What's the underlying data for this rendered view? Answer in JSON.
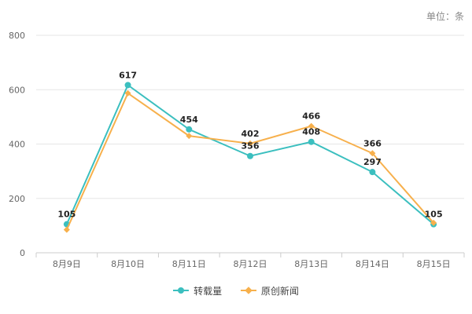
{
  "unit_label": "单位：条",
  "colors": {
    "series_reprint": "#3bbfbf",
    "series_original": "#f7b04c",
    "grid": "#e6e6e6",
    "axis": "#cccccc",
    "tick_text": "#666666",
    "label_text": "#222222"
  },
  "chart_data": {
    "type": "line",
    "categories": [
      "8月9日",
      "8月10日",
      "8月11日",
      "8月12日",
      "8月13日",
      "8月14日",
      "8月15日"
    ],
    "series": [
      {
        "name": "转载量",
        "values": [
          105,
          617,
          454,
          356,
          408,
          297,
          105
        ],
        "marker": "circle"
      },
      {
        "name": "原创新闻",
        "values": [
          85,
          587,
          430,
          402,
          466,
          366,
          110
        ],
        "marker": "diamond"
      }
    ],
    "data_labels": [
      {
        "series": 0,
        "index": 0,
        "text": "105"
      },
      {
        "series": 0,
        "index": 1,
        "text": "617"
      },
      {
        "series": 0,
        "index": 2,
        "text": "454"
      },
      {
        "series": 0,
        "index": 3,
        "text": "356"
      },
      {
        "series": 0,
        "index": 4,
        "text": "408"
      },
      {
        "series": 0,
        "index": 5,
        "text": "297"
      },
      {
        "series": 0,
        "index": 6,
        "text": "105"
      },
      {
        "series": 1,
        "index": 3,
        "text": "402"
      },
      {
        "series": 1,
        "index": 4,
        "text": "466"
      },
      {
        "series": 1,
        "index": 5,
        "text": "366"
      }
    ],
    "yticks": [
      "0",
      "200",
      "400",
      "600",
      "800"
    ],
    "ylim": [
      0,
      800
    ],
    "grid": true,
    "legend_position": "bottom"
  }
}
